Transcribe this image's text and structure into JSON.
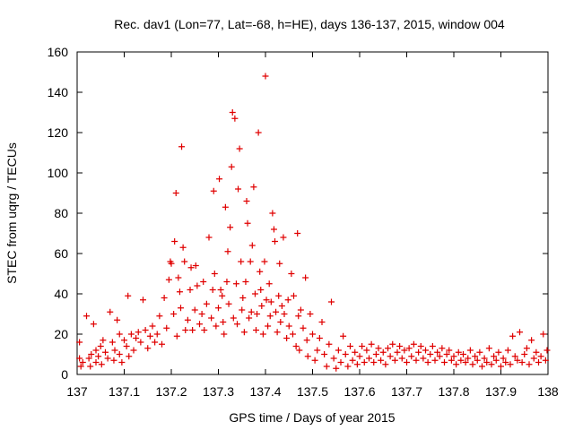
{
  "chart_data": {
    "type": "scatter",
    "title": "Rec. dav1 (Lon=77, Lat=-68, h=HE), days 136-137, 2015, window 004",
    "xlabel": "GPS time / Days of year 2015",
    "ylabel": "STEC from uqrg / TECUs",
    "xlim": [
      137,
      138
    ],
    "ylim": [
      0,
      160
    ],
    "xticks": [
      137,
      137.1,
      137.2,
      137.3,
      137.4,
      137.5,
      137.6,
      137.7,
      137.8,
      137.9,
      138
    ],
    "xtick_labels": [
      "137",
      "137.1",
      "137.2",
      "137.3",
      "137.4",
      "137.5",
      "137.6",
      "137.7",
      "137.8",
      "137.9",
      "138"
    ],
    "yticks": [
      0,
      20,
      40,
      60,
      80,
      100,
      120,
      140,
      160
    ],
    "ytick_labels": [
      "0",
      "20",
      "40",
      "60",
      "80",
      "100",
      "120",
      "140",
      "160"
    ],
    "grid": false,
    "marker": "+",
    "color": "#e00000",
    "points": [
      [
        137.005,
        16
      ],
      [
        137.005,
        8
      ],
      [
        137.008,
        4
      ],
      [
        137.012,
        6
      ],
      [
        137.02,
        29
      ],
      [
        137.025,
        8
      ],
      [
        137.028,
        4
      ],
      [
        137.03,
        10
      ],
      [
        137.035,
        25
      ],
      [
        137.04,
        12
      ],
      [
        137.04,
        6
      ],
      [
        137.045,
        9
      ],
      [
        137.05,
        14
      ],
      [
        137.052,
        5
      ],
      [
        137.055,
        17
      ],
      [
        137.06,
        11
      ],
      [
        137.065,
        8
      ],
      [
        137.07,
        31
      ],
      [
        137.075,
        16
      ],
      [
        137.078,
        7
      ],
      [
        137.08,
        12
      ],
      [
        137.085,
        27
      ],
      [
        137.09,
        20
      ],
      [
        137.09,
        10
      ],
      [
        137.095,
        6
      ],
      [
        137.1,
        17
      ],
      [
        137.105,
        14
      ],
      [
        137.108,
        39
      ],
      [
        137.11,
        9
      ],
      [
        137.115,
        20
      ],
      [
        137.12,
        12
      ],
      [
        137.125,
        18
      ],
      [
        137.13,
        21
      ],
      [
        137.135,
        16
      ],
      [
        137.14,
        37
      ],
      [
        137.145,
        22
      ],
      [
        137.15,
        13
      ],
      [
        137.155,
        19
      ],
      [
        137.16,
        24
      ],
      [
        137.165,
        16
      ],
      [
        137.17,
        20
      ],
      [
        137.175,
        29
      ],
      [
        137.18,
        15
      ],
      [
        137.185,
        38
      ],
      [
        137.19,
        23
      ],
      [
        137.195,
        47
      ],
      [
        137.198,
        56
      ],
      [
        137.2,
        55
      ],
      [
        137.205,
        30
      ],
      [
        137.207,
        66
      ],
      [
        137.21,
        90
      ],
      [
        137.212,
        19
      ],
      [
        137.215,
        48
      ],
      [
        137.218,
        41
      ],
      [
        137.22,
        33
      ],
      [
        137.222,
        113
      ],
      [
        137.225,
        63
      ],
      [
        137.228,
        56
      ],
      [
        137.23,
        22
      ],
      [
        137.235,
        27
      ],
      [
        137.24,
        42
      ],
      [
        137.242,
        53
      ],
      [
        137.245,
        22
      ],
      [
        137.25,
        32
      ],
      [
        137.252,
        54
      ],
      [
        137.255,
        44
      ],
      [
        137.26,
        25
      ],
      [
        137.265,
        30
      ],
      [
        137.268,
        46
      ],
      [
        137.27,
        22
      ],
      [
        137.275,
        35
      ],
      [
        137.28,
        68
      ],
      [
        137.285,
        28
      ],
      [
        137.288,
        42
      ],
      [
        137.29,
        91
      ],
      [
        137.292,
        50
      ],
      [
        137.295,
        24
      ],
      [
        137.3,
        33
      ],
      [
        137.302,
        97
      ],
      [
        137.305,
        42
      ],
      [
        137.308,
        39
      ],
      [
        137.31,
        26
      ],
      [
        137.312,
        20
      ],
      [
        137.315,
        83
      ],
      [
        137.318,
        46
      ],
      [
        137.32,
        61
      ],
      [
        137.322,
        35
      ],
      [
        137.325,
        73
      ],
      [
        137.328,
        103
      ],
      [
        137.33,
        130
      ],
      [
        137.332,
        28
      ],
      [
        137.335,
        127
      ],
      [
        137.338,
        45
      ],
      [
        137.34,
        25
      ],
      [
        137.342,
        92
      ],
      [
        137.345,
        112
      ],
      [
        137.348,
        56
      ],
      [
        137.35,
        32
      ],
      [
        137.352,
        38
      ],
      [
        137.355,
        21
      ],
      [
        137.358,
        46
      ],
      [
        137.36,
        86
      ],
      [
        137.362,
        75
      ],
      [
        137.365,
        28
      ],
      [
        137.368,
        56
      ],
      [
        137.37,
        31
      ],
      [
        137.372,
        64
      ],
      [
        137.375,
        93
      ],
      [
        137.378,
        40
      ],
      [
        137.38,
        22
      ],
      [
        137.382,
        30
      ],
      [
        137.385,
        120
      ],
      [
        137.388,
        51
      ],
      [
        137.39,
        42
      ],
      [
        137.392,
        34
      ],
      [
        137.395,
        20
      ],
      [
        137.398,
        56
      ],
      [
        137.4,
        148
      ],
      [
        137.402,
        37
      ],
      [
        137.405,
        24
      ],
      [
        137.408,
        45
      ],
      [
        137.41,
        29
      ],
      [
        137.412,
        36
      ],
      [
        137.415,
        80
      ],
      [
        137.418,
        72
      ],
      [
        137.42,
        66
      ],
      [
        137.422,
        31
      ],
      [
        137.425,
        21
      ],
      [
        137.428,
        39
      ],
      [
        137.43,
        55
      ],
      [
        137.432,
        26
      ],
      [
        137.435,
        34
      ],
      [
        137.438,
        68
      ],
      [
        137.44,
        30
      ],
      [
        137.445,
        18
      ],
      [
        137.448,
        37
      ],
      [
        137.45,
        24
      ],
      [
        137.455,
        50
      ],
      [
        137.458,
        20
      ],
      [
        137.46,
        39
      ],
      [
        137.465,
        14
      ],
      [
        137.468,
        70
      ],
      [
        137.47,
        29
      ],
      [
        137.472,
        12
      ],
      [
        137.475,
        32
      ],
      [
        137.48,
        23
      ],
      [
        137.485,
        48
      ],
      [
        137.488,
        17
      ],
      [
        137.49,
        9
      ],
      [
        137.495,
        30
      ],
      [
        137.5,
        20
      ],
      [
        137.505,
        7
      ],
      [
        137.51,
        12
      ],
      [
        137.515,
        18
      ],
      [
        137.52,
        26
      ],
      [
        137.525,
        10
      ],
      [
        137.53,
        4
      ],
      [
        137.535,
        15
      ],
      [
        137.54,
        36
      ],
      [
        137.545,
        8
      ],
      [
        137.55,
        3
      ],
      [
        137.555,
        12
      ],
      [
        137.56,
        6
      ],
      [
        137.565,
        19
      ],
      [
        137.57,
        10
      ],
      [
        137.575,
        4
      ],
      [
        137.58,
        14
      ],
      [
        137.585,
        7
      ],
      [
        137.59,
        11
      ],
      [
        137.595,
        5
      ],
      [
        137.6,
        9
      ],
      [
        137.605,
        14
      ],
      [
        137.61,
        6
      ],
      [
        137.615,
        12
      ],
      [
        137.62,
        8
      ],
      [
        137.625,
        15
      ],
      [
        137.63,
        6
      ],
      [
        137.635,
        10
      ],
      [
        137.64,
        13
      ],
      [
        137.645,
        7
      ],
      [
        137.65,
        11
      ],
      [
        137.655,
        5
      ],
      [
        137.66,
        13
      ],
      [
        137.665,
        9
      ],
      [
        137.67,
        15
      ],
      [
        137.675,
        7
      ],
      [
        137.68,
        11
      ],
      [
        137.685,
        14
      ],
      [
        137.69,
        8
      ],
      [
        137.695,
        12
      ],
      [
        137.7,
        6
      ],
      [
        137.705,
        13
      ],
      [
        137.71,
        9
      ],
      [
        137.715,
        15
      ],
      [
        137.72,
        7
      ],
      [
        137.725,
        11
      ],
      [
        137.73,
        14
      ],
      [
        137.735,
        8
      ],
      [
        137.74,
        12
      ],
      [
        137.745,
        6
      ],
      [
        137.75,
        10
      ],
      [
        137.755,
        14
      ],
      [
        137.76,
        7
      ],
      [
        137.765,
        11
      ],
      [
        137.77,
        9
      ],
      [
        137.775,
        13
      ],
      [
        137.78,
        6
      ],
      [
        137.785,
        10
      ],
      [
        137.79,
        12
      ],
      [
        137.795,
        7
      ],
      [
        137.8,
        9
      ],
      [
        137.805,
        5
      ],
      [
        137.81,
        11
      ],
      [
        137.815,
        7
      ],
      [
        137.82,
        10
      ],
      [
        137.825,
        6
      ],
      [
        137.83,
        8
      ],
      [
        137.835,
        12
      ],
      [
        137.84,
        5
      ],
      [
        137.845,
        9
      ],
      [
        137.85,
        7
      ],
      [
        137.855,
        11
      ],
      [
        137.86,
        4
      ],
      [
        137.865,
        8
      ],
      [
        137.87,
        6
      ],
      [
        137.875,
        13
      ],
      [
        137.88,
        5
      ],
      [
        137.885,
        9
      ],
      [
        137.89,
        7
      ],
      [
        137.895,
        11
      ],
      [
        137.9,
        4
      ],
      [
        137.905,
        8
      ],
      [
        137.91,
        6
      ],
      [
        137.915,
        12
      ],
      [
        137.92,
        5
      ],
      [
        137.925,
        19
      ],
      [
        137.93,
        9
      ],
      [
        137.935,
        7
      ],
      [
        137.94,
        21
      ],
      [
        137.945,
        6
      ],
      [
        137.95,
        10
      ],
      [
        137.955,
        13
      ],
      [
        137.96,
        5
      ],
      [
        137.965,
        17
      ],
      [
        137.97,
        8
      ],
      [
        137.975,
        11
      ],
      [
        137.98,
        6
      ],
      [
        137.985,
        9
      ],
      [
        137.99,
        20
      ],
      [
        137.995,
        7
      ],
      [
        137.998,
        12
      ]
    ]
  }
}
